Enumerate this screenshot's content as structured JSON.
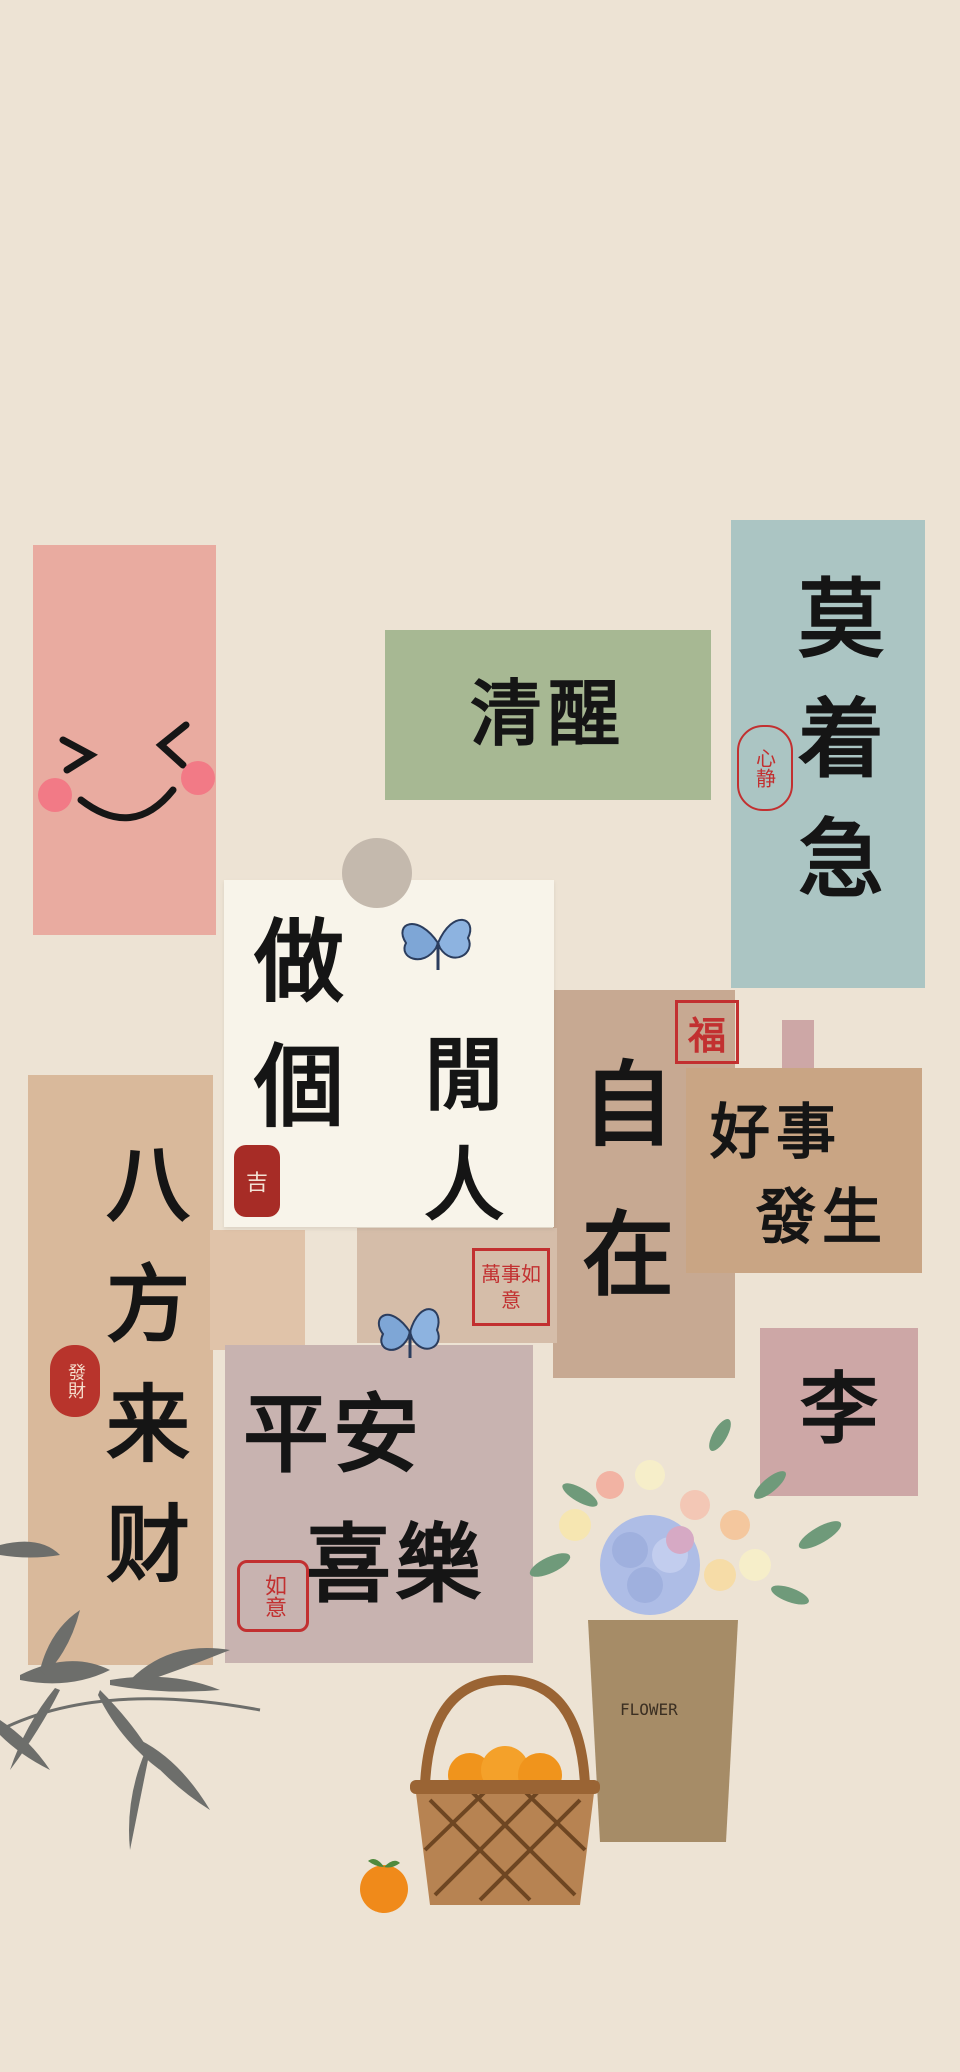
{
  "cards": {
    "qingxing": {
      "text": "清醒",
      "color": "#a7b893"
    },
    "mozheji": {
      "text": "莫着急",
      "seal": "心静",
      "color": "#abc5c3"
    },
    "xianren": {
      "line1": "做個",
      "line2": "閒人",
      "seal": "吉",
      "color": "#f8f4ea"
    },
    "zizai": {
      "text": "自在",
      "seal": "福",
      "color": "#c7a992"
    },
    "haoshi": {
      "line1": "好事",
      "line2": "發生",
      "color": "#c9a584"
    },
    "bafang": {
      "text": "八方来财",
      "seal": "發財",
      "color": "#d9b99b"
    },
    "pingan": {
      "line1": "平安",
      "line2": "喜樂",
      "seal": "如意",
      "color": "#c8b3b0"
    },
    "li": {
      "text": "李",
      "color": "#cda7a6"
    },
    "wanshi": {
      "seal": "萬事如意"
    },
    "smiley": {
      "color": "#e9aba0"
    }
  },
  "flower_bag_label": "FLOWER",
  "colors": {
    "background": "#ede3d4",
    "ink": "#151515",
    "seal_red": "#c23030"
  }
}
